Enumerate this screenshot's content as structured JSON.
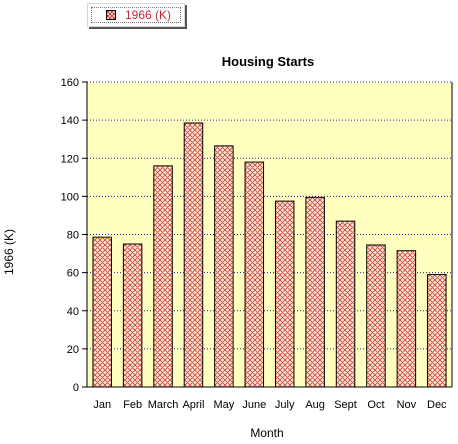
{
  "chart_data": {
    "type": "bar",
    "title": "Housing Starts",
    "xlabel": "Month",
    "ylabel": "1966 (K)",
    "categories": [
      "Jan",
      "Feb",
      "March",
      "April",
      "May",
      "June",
      "July",
      "Aug",
      "Sept",
      "Oct",
      "Nov",
      "Dec"
    ],
    "series": [
      {
        "name": "1966 (K)",
        "values": [
          78.6,
          75.0,
          116.0,
          138.5,
          126.5,
          118.0,
          97.5,
          99.5,
          87.0,
          74.5,
          71.5,
          59.0
        ]
      }
    ],
    "ylim": [
      0,
      160
    ],
    "yticks": [
      0,
      20,
      40,
      60,
      80,
      100,
      120,
      140,
      160
    ],
    "grid": true,
    "legend_position": "top-left",
    "colors": {
      "plot_background": "#ffffc0",
      "bar_fill": "#fce4c4",
      "bar_hatch": "#c0283c",
      "grid": "#1a1aa8",
      "legend_text": "#c0283c"
    }
  }
}
